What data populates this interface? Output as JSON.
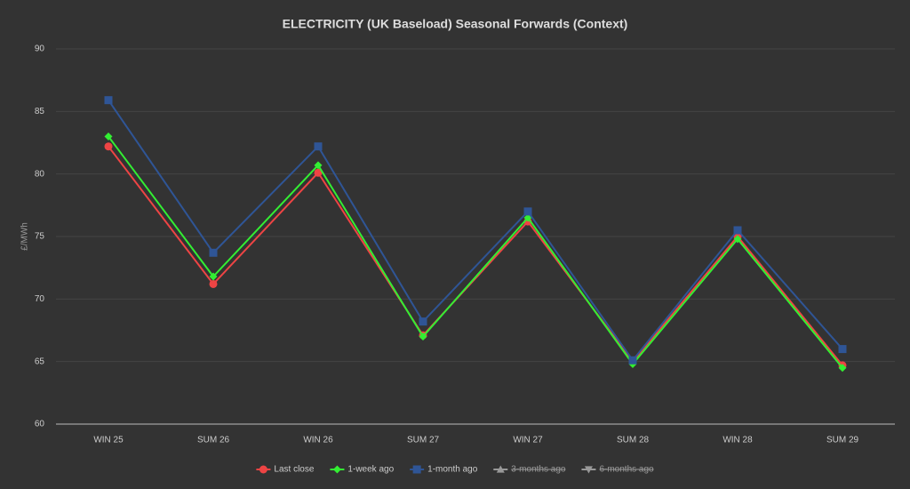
{
  "chart_data": {
    "type": "line",
    "title": "ELECTRICITY (UK Baseload) Seasonal Forwards (Context)",
    "y_label": "£/MWh",
    "categories": [
      "WIN 25",
      "SUM 26",
      "WIN 26",
      "SUM 27",
      "WIN 27",
      "SUM 28",
      "WIN 28",
      "SUM 29"
    ],
    "series": [
      {
        "name": "Last close",
        "color": "#ee4444",
        "marker": "circle",
        "values": [
          82.2,
          71.2,
          80.1,
          67.1,
          76.2,
          65.0,
          75.0,
          64.7
        ]
      },
      {
        "name": "1-week ago",
        "color": "#33ee33",
        "marker": "diamond",
        "values": [
          83.0,
          71.8,
          80.7,
          67.0,
          76.5,
          64.8,
          74.8,
          64.5
        ]
      },
      {
        "name": "1-month ago",
        "color": "#2f5596",
        "marker": "square",
        "values": [
          85.9,
          73.7,
          82.2,
          68.2,
          77.0,
          65.1,
          75.5,
          66.0
        ]
      },
      {
        "name": "3-months ago",
        "color": "#999999",
        "marker": "triangle",
        "hidden": true,
        "values": [
          null,
          null,
          null,
          null,
          null,
          null,
          null,
          null
        ]
      },
      {
        "name": "6-months ago",
        "color": "#999999",
        "marker": "triangle-down",
        "hidden": true,
        "values": [
          null,
          null,
          null,
          null,
          null,
          null,
          null,
          null
        ]
      }
    ],
    "ylim": [
      60,
      90
    ],
    "yticks": [
      60,
      65,
      70,
      75,
      80,
      85,
      90
    ],
    "grid": true,
    "legend": "bottom"
  }
}
